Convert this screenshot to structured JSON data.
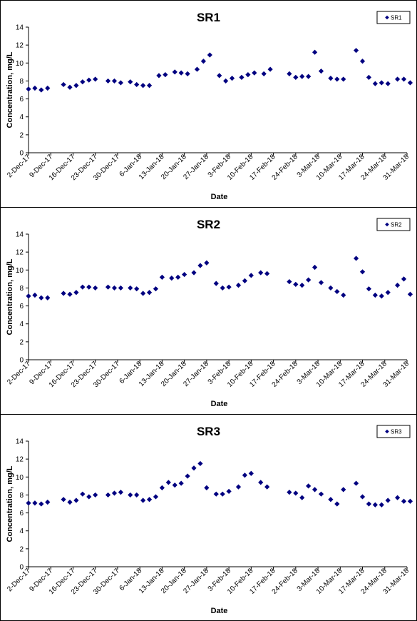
{
  "chart_data": [
    {
      "type": "scatter",
      "title": "SR1",
      "xlabel": "Date",
      "ylabel": "Concentration, mg/L",
      "ylim": [
        0,
        14
      ],
      "yticks": [
        0,
        2,
        4,
        6,
        8,
        10,
        12,
        14
      ],
      "x_range": [
        "2017-12-02",
        "2018-03-31"
      ],
      "x_tick_labels": [
        "2-Dec-17",
        "9-Dec-17",
        "16-Dec-17",
        "23-Dec-17",
        "30-Dec-17",
        "6-Jan-18",
        "13-Jan-18",
        "20-Jan-18",
        "27-Jan-18",
        "3-Feb-18",
        "10-Feb-18",
        "17-Feb-18",
        "24-Feb-18",
        "3-Mar-18",
        "10-Mar-18",
        "17-Mar-18",
        "24-Mar-18",
        "31-Mar-18"
      ],
      "grid": false,
      "legend_position": "top-right",
      "marker_color": "#000080",
      "series": [
        {
          "name": "SR1",
          "x": [
            "2017-12-02",
            "2017-12-04",
            "2017-12-06",
            "2017-12-08",
            "2017-12-13",
            "2017-12-15",
            "2017-12-17",
            "2017-12-19",
            "2017-12-21",
            "2017-12-23",
            "2017-12-27",
            "2017-12-29",
            "2017-12-31",
            "2018-01-03",
            "2018-01-05",
            "2018-01-07",
            "2018-01-09",
            "2018-01-12",
            "2018-01-14",
            "2018-01-17",
            "2018-01-19",
            "2018-01-21",
            "2018-01-24",
            "2018-01-26",
            "2018-01-28",
            "2018-01-31",
            "2018-02-02",
            "2018-02-04",
            "2018-02-07",
            "2018-02-09",
            "2018-02-11",
            "2018-02-14",
            "2018-02-16",
            "2018-02-22",
            "2018-02-24",
            "2018-02-26",
            "2018-02-28",
            "2018-03-02",
            "2018-03-04",
            "2018-03-07",
            "2018-03-09",
            "2018-03-11",
            "2018-03-15",
            "2018-03-17",
            "2018-03-19",
            "2018-03-21",
            "2018-03-23",
            "2018-03-25",
            "2018-03-28",
            "2018-03-30",
            "2018-04-01"
          ],
          "y": [
            7.1,
            7.2,
            7.0,
            7.2,
            7.6,
            7.3,
            7.5,
            7.9,
            8.1,
            8.2,
            8.0,
            8.0,
            7.8,
            7.9,
            7.6,
            7.5,
            7.5,
            8.6,
            8.7,
            9.0,
            8.9,
            8.8,
            9.3,
            10.2,
            10.9,
            8.6,
            8.0,
            8.3,
            8.4,
            8.7,
            8.9,
            8.8,
            9.3,
            8.8,
            8.4,
            8.5,
            8.5,
            11.2,
            9.1,
            8.3,
            8.2,
            8.2,
            11.4,
            10.2,
            8.4,
            7.7,
            7.8,
            7.7,
            8.2,
            8.2,
            7.8
          ]
        }
      ]
    },
    {
      "type": "scatter",
      "title": "SR2",
      "xlabel": "Date",
      "ylabel": "Concentration, mg/L",
      "ylim": [
        0,
        14
      ],
      "yticks": [
        0,
        2,
        4,
        6,
        8,
        10,
        12,
        14
      ],
      "x_range": [
        "2017-12-02",
        "2018-03-31"
      ],
      "x_tick_labels": [
        "2-Dec-17",
        "9-Dec-17",
        "16-Dec-17",
        "23-Dec-17",
        "30-Dec-17",
        "6-Jan-18",
        "13-Jan-18",
        "20-Jan-18",
        "27-Jan-18",
        "3-Feb-18",
        "10-Feb-18",
        "17-Feb-18",
        "24-Feb-18",
        "3-Mar-18",
        "10-Mar-18",
        "17-Mar-18",
        "24-Mar-18",
        "31-Mar-18"
      ],
      "grid": false,
      "legend_position": "top-right",
      "marker_color": "#000080",
      "series": [
        {
          "name": "SR2",
          "x": [
            "2017-12-02",
            "2017-12-04",
            "2017-12-06",
            "2017-12-08",
            "2017-12-13",
            "2017-12-15",
            "2017-12-17",
            "2017-12-19",
            "2017-12-21",
            "2017-12-23",
            "2017-12-27",
            "2017-12-29",
            "2017-12-31",
            "2018-01-03",
            "2018-01-05",
            "2018-01-07",
            "2018-01-09",
            "2018-01-11",
            "2018-01-13",
            "2018-01-16",
            "2018-01-18",
            "2018-01-20",
            "2018-01-23",
            "2018-01-25",
            "2018-01-27",
            "2018-01-30",
            "2018-02-01",
            "2018-02-03",
            "2018-02-06",
            "2018-02-08",
            "2018-02-10",
            "2018-02-13",
            "2018-02-15",
            "2018-02-22",
            "2018-02-24",
            "2018-02-26",
            "2018-02-28",
            "2018-03-02",
            "2018-03-04",
            "2018-03-07",
            "2018-03-09",
            "2018-03-11",
            "2018-03-15",
            "2018-03-17",
            "2018-03-19",
            "2018-03-21",
            "2018-03-23",
            "2018-03-25",
            "2018-03-28",
            "2018-03-30",
            "2018-04-01"
          ],
          "y": [
            7.1,
            7.2,
            6.9,
            6.9,
            7.4,
            7.3,
            7.5,
            8.1,
            8.1,
            8.0,
            8.1,
            8.0,
            8.0,
            8.0,
            7.9,
            7.4,
            7.5,
            7.9,
            9.2,
            9.1,
            9.2,
            9.5,
            9.7,
            10.5,
            10.8,
            8.5,
            8.0,
            8.1,
            8.3,
            8.8,
            9.4,
            9.7,
            9.6,
            8.7,
            8.4,
            8.3,
            8.9,
            10.3,
            8.6,
            8.0,
            7.6,
            7.2,
            11.3,
            9.8,
            7.9,
            7.2,
            7.1,
            7.5,
            8.3,
            9.0,
            7.3
          ]
        }
      ]
    },
    {
      "type": "scatter",
      "title": "SR3",
      "xlabel": "Date",
      "ylabel": "Concentration, mg/L",
      "ylim": [
        0,
        14
      ],
      "yticks": [
        0,
        2,
        4,
        6,
        8,
        10,
        12,
        14
      ],
      "x_range": [
        "2017-12-02",
        "2018-03-31"
      ],
      "x_tick_labels": [
        "2-Dec-17",
        "9-Dec-17",
        "16-Dec-17",
        "23-Dec-17",
        "30-Dec-17",
        "6-Jan-18",
        "13-Jan-18",
        "20-Jan-18",
        "27-Jan-18",
        "3-Feb-18",
        "10-Feb-18",
        "17-Feb-18",
        "24-Feb-18",
        "3-Mar-18",
        "10-Mar-18",
        "17-Mar-18",
        "24-Mar-18",
        "31-Mar-18"
      ],
      "grid": false,
      "legend_position": "top-right",
      "marker_color": "#000080",
      "series": [
        {
          "name": "SR3",
          "x": [
            "2017-12-02",
            "2017-12-04",
            "2017-12-06",
            "2017-12-08",
            "2017-12-13",
            "2017-12-15",
            "2017-12-17",
            "2017-12-19",
            "2017-12-21",
            "2017-12-23",
            "2017-12-27",
            "2017-12-29",
            "2017-12-31",
            "2018-01-03",
            "2018-01-05",
            "2018-01-07",
            "2018-01-09",
            "2018-01-11",
            "2018-01-13",
            "2018-01-15",
            "2018-01-17",
            "2018-01-19",
            "2018-01-21",
            "2018-01-23",
            "2018-01-25",
            "2018-01-27",
            "2018-01-30",
            "2018-02-01",
            "2018-02-03",
            "2018-02-06",
            "2018-02-08",
            "2018-02-10",
            "2018-02-13",
            "2018-02-15",
            "2018-02-22",
            "2018-02-24",
            "2018-02-26",
            "2018-02-28",
            "2018-03-02",
            "2018-03-04",
            "2018-03-07",
            "2018-03-09",
            "2018-03-11",
            "2018-03-15",
            "2018-03-17",
            "2018-03-19",
            "2018-03-21",
            "2018-03-23",
            "2018-03-25",
            "2018-03-28",
            "2018-03-30",
            "2018-04-01"
          ],
          "y": [
            7.1,
            7.1,
            7.0,
            7.2,
            7.5,
            7.2,
            7.4,
            8.1,
            7.8,
            8.0,
            8.0,
            8.2,
            8.3,
            8.0,
            8.0,
            7.4,
            7.5,
            7.8,
            8.8,
            9.4,
            9.1,
            9.3,
            10.1,
            11.0,
            11.5,
            8.8,
            8.1,
            8.1,
            8.4,
            8.9,
            10.2,
            10.4,
            9.4,
            8.9,
            8.3,
            8.2,
            7.7,
            9.0,
            8.6,
            8.1,
            7.5,
            7.0,
            8.6,
            9.3,
            7.8,
            7.0,
            6.9,
            6.9,
            7.4,
            7.7,
            7.3,
            7.3
          ]
        }
      ]
    }
  ]
}
